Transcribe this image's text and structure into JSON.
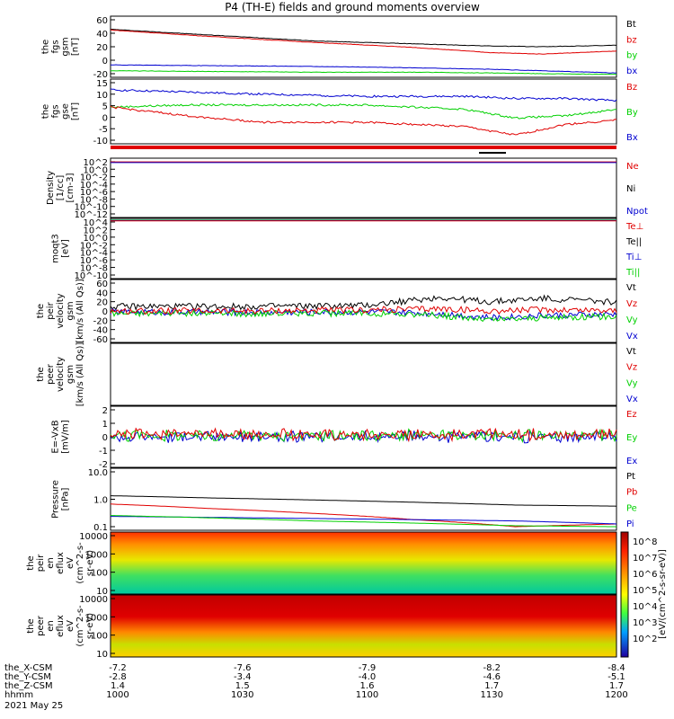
{
  "title": "P4 (TH-E) fields and ground moments overview",
  "colors": {
    "black": "#000000",
    "red": "#e00000",
    "green": "#00d000",
    "blue": "#0000d0"
  },
  "bottom_axis": {
    "rows": [
      {
        "label": "the_X-CSM",
        "values": [
          "-7.2",
          "-7.6",
          "-7.9",
          "-8.2",
          "-8.4"
        ]
      },
      {
        "label": "the_Y-CSM",
        "values": [
          "-2.8",
          "-3.4",
          "-4.0",
          "-4.6",
          "-5.1"
        ]
      },
      {
        "label": "the_Z-CSM",
        "values": [
          "1.4",
          "1.5",
          "1.6",
          "1.7",
          "1.7"
        ]
      },
      {
        "label": "hhmm",
        "values": [
          "1000",
          "1030",
          "1100",
          "1130",
          "1200"
        ]
      }
    ],
    "date": "2021 May 25"
  },
  "colorbar": {
    "label": "[eV/(cm^2-s-sr-eV)]",
    "upper_ticks": [
      "10^8",
      "10^7",
      "10^6"
    ],
    "lower_ticks": [
      "10^5",
      "10^4",
      "10^3",
      "10^2"
    ]
  },
  "chart_data": [
    {
      "id": "fgs_gsm",
      "type": "line",
      "ylabel": [
        "the",
        "fgs",
        "gsm",
        "[nT]"
      ],
      "yticks": [
        "60",
        "40",
        "20",
        "0",
        "-20"
      ],
      "ylim": [
        -22,
        62
      ],
      "legend": [
        {
          "text": "Bt",
          "color": "black"
        },
        {
          "text": "bz",
          "color": "red"
        },
        {
          "text": "by",
          "color": "green"
        },
        {
          "text": "bx",
          "color": "blue"
        }
      ],
      "x": [
        0,
        0.2,
        0.4,
        0.6,
        0.75,
        0.85,
        1
      ],
      "series": [
        {
          "color": "black",
          "values": [
            44,
            36,
            28,
            24,
            21,
            20,
            22
          ]
        },
        {
          "color": "red",
          "values": [
            43,
            34,
            26,
            19,
            12,
            10,
            14
          ]
        },
        {
          "color": "green",
          "values": [
            -13,
            -14,
            -15,
            -15,
            -16,
            -17,
            -18
          ]
        },
        {
          "color": "blue",
          "values": [
            -5,
            -6,
            -7,
            -9,
            -11,
            -13,
            -16
          ]
        }
      ]
    },
    {
      "id": "fgs_gse",
      "type": "line",
      "ylabel": [
        "the",
        "fgs",
        "gse",
        "[nT]"
      ],
      "yticks": [
        "15",
        "10",
        "5",
        "0",
        "-5",
        "-10"
      ],
      "ylim": [
        -13,
        17
      ],
      "legend": [
        {
          "text": "Bz",
          "color": "red"
        },
        {
          "text": "By",
          "color": "green"
        },
        {
          "text": "Bx",
          "color": "blue"
        }
      ],
      "x": [
        0,
        0.15,
        0.3,
        0.5,
        0.7,
        0.8,
        0.9,
        1
      ],
      "series": [
        {
          "color": "blue",
          "values": [
            12,
            11,
            10,
            9,
            9,
            8,
            8,
            7
          ]
        },
        {
          "color": "green",
          "values": [
            4,
            5,
            5,
            5,
            3,
            -1,
            0,
            3
          ]
        },
        {
          "color": "red",
          "values": [
            4,
            0,
            -3,
            -3,
            -5,
            -9,
            -4,
            -2
          ]
        }
      ]
    },
    {
      "id": "density",
      "type": "line",
      "ylabel": [
        "Density",
        "[1/cc]",
        "[cm-3]"
      ],
      "yticks": [
        "10^2",
        "10^0",
        "10^-2",
        "10^-4",
        "10^-6",
        "10^-8",
        "10^-10",
        "10^-12"
      ],
      "ylim": [
        -13,
        3
      ],
      "log": true,
      "legend": [
        {
          "text": "Ne",
          "color": "red"
        },
        {
          "text": "Ni",
          "color": "black"
        },
        {
          "text": "Npot",
          "color": "blue"
        }
      ],
      "x": [
        0,
        1
      ],
      "series": [
        {
          "color": "red",
          "values": [
            2,
            2
          ]
        },
        {
          "color": "blue",
          "values": [
            1.8,
            1.8
          ]
        }
      ]
    },
    {
      "id": "temp",
      "type": "line",
      "ylabel": [
        "moqt3",
        "[eV]"
      ],
      "yticks": [
        "10^4",
        "10^2",
        "10^0",
        "10^-2",
        "10^-4",
        "10^-6",
        "10^-8",
        "10^-10"
      ],
      "ylim": [
        -11,
        4
      ],
      "log": true,
      "legend": [
        {
          "text": "Te⊥",
          "color": "red"
        },
        {
          "text": "Te||",
          "color": "black"
        },
        {
          "text": "Ti⊥",
          "color": "blue"
        },
        {
          "text": "Ti||",
          "color": "green"
        }
      ],
      "x": [
        0,
        1
      ],
      "series": [
        {
          "color": "green",
          "values": [
            3.6,
            3.6
          ]
        },
        {
          "color": "blue",
          "values": [
            3.5,
            3.5
          ]
        },
        {
          "color": "red",
          "values": [
            3.4,
            3.4
          ]
        }
      ]
    },
    {
      "id": "peir_velocity",
      "type": "line",
      "ylabel": [
        "the",
        "peir",
        "velocity",
        "gsm",
        "[km/s (All Qs)]"
      ],
      "yticks": [
        "60",
        "40",
        "20",
        "0",
        "-20",
        "-40",
        "-60"
      ],
      "ylim": [
        -70,
        70
      ],
      "legend": [
        {
          "text": "Vt",
          "color": "black"
        },
        {
          "text": "Vz",
          "color": "red"
        },
        {
          "text": "Vy",
          "color": "green"
        },
        {
          "text": "Vx",
          "color": "blue"
        }
      ],
      "x": [
        0,
        0.25,
        0.5,
        0.65,
        0.75,
        0.85,
        1
      ],
      "series": [
        {
          "color": "black",
          "values": [
            10,
            10,
            12,
            30,
            20,
            28,
            20
          ]
        },
        {
          "color": "blue",
          "values": [
            -2,
            -3,
            -2,
            -5,
            -15,
            -10,
            -8
          ]
        },
        {
          "color": "green",
          "values": [
            -5,
            -6,
            -5,
            -10,
            -20,
            -15,
            -12
          ]
        },
        {
          "color": "red",
          "values": [
            0,
            0,
            2,
            5,
            0,
            3,
            2
          ]
        }
      ]
    },
    {
      "id": "peer_velocity",
      "type": "line",
      "ylabel": [
        "the",
        "peer",
        "velocity",
        "gsm",
        "[km/s (All Qs)]"
      ],
      "yticks": [],
      "ylim": [
        -70,
        70
      ],
      "legend": [
        {
          "text": "Vt",
          "color": "black"
        },
        {
          "text": "Vz",
          "color": "red"
        },
        {
          "text": "Vy",
          "color": "green"
        },
        {
          "text": "Vx",
          "color": "blue"
        }
      ],
      "x": [],
      "series": []
    },
    {
      "id": "efield",
      "type": "line",
      "ylabel": [
        "E=-VxB",
        "[mV/m]"
      ],
      "yticks": [
        "2",
        "1",
        "0",
        "-1",
        "-2"
      ],
      "ylim": [
        -2.5,
        2.5
      ],
      "legend": [
        {
          "text": "Ez",
          "color": "red"
        },
        {
          "text": "Ey",
          "color": "green"
        },
        {
          "text": "Ex",
          "color": "blue"
        }
      ],
      "x": [
        0,
        0.5,
        1
      ],
      "series": [
        {
          "color": "blue",
          "values": [
            0,
            0,
            0
          ]
        },
        {
          "color": "green",
          "values": [
            0.1,
            0.1,
            0.1
          ]
        },
        {
          "color": "red",
          "values": [
            0.2,
            0.2,
            0.2
          ]
        }
      ]
    },
    {
      "id": "pressure",
      "type": "line",
      "ylabel": [
        "Pressure",
        "[nPa]"
      ],
      "yticks": [
        "10.0",
        "1.0",
        "0.1"
      ],
      "ylim": [
        -1,
        1
      ],
      "log": true,
      "legend": [
        {
          "text": "Pt",
          "color": "black"
        },
        {
          "text": "Pb",
          "color": "red"
        },
        {
          "text": "Pe",
          "color": "green"
        },
        {
          "text": "Pi",
          "color": "blue"
        }
      ],
      "x": [
        0,
        0.2,
        0.4,
        0.6,
        0.8,
        1
      ],
      "series": [
        {
          "color": "black",
          "values": [
            1.3,
            1.1,
            0.95,
            0.8,
            0.65,
            0.6
          ]
        },
        {
          "color": "red",
          "values": [
            0.7,
            0.5,
            0.35,
            0.22,
            0.13,
            0.16
          ]
        },
        {
          "color": "blue",
          "values": [
            0.28,
            0.26,
            0.24,
            0.22,
            0.2,
            0.16
          ]
        },
        {
          "color": "green",
          "values": [
            0.3,
            0.25,
            0.2,
            0.17,
            0.14,
            0.13
          ]
        }
      ]
    },
    {
      "id": "peir_eflux",
      "type": "heatmap",
      "ylabel": [
        "the",
        "peir",
        "en",
        "eflux",
        "eV",
        "(cm^2-s-",
        "sr-eV)"
      ],
      "yticks": [
        "10000",
        "1000",
        "100",
        "10"
      ],
      "ylim": [
        0.8,
        4.2
      ],
      "log": true,
      "legend": []
    },
    {
      "id": "peer_eflux",
      "type": "heatmap",
      "ylabel": [
        "the",
        "peer",
        "en",
        "eflux",
        "eV",
        "(cm^2-s-",
        "sr-eV)"
      ],
      "yticks": [
        "10000",
        "1000",
        "100",
        "10"
      ],
      "ylim": [
        0.8,
        4.2
      ],
      "log": true,
      "legend": []
    }
  ]
}
